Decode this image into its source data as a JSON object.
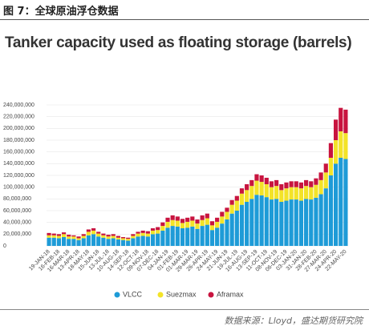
{
  "header": {
    "title": "图 7：全球原油浮仓数据"
  },
  "footer": {
    "source": "数据来源：Lloyd，盛达期货研究院"
  },
  "chart_data": {
    "type": "stacked_bar",
    "title": "Tanker capacity used as floating storage (barrels)",
    "categories": [
      "19-JAN-18",
      null,
      "16-FEB-18",
      null,
      "16-MAR-18",
      null,
      "13-APR-18",
      null,
      "18-MAY-18",
      null,
      "15-JUN-18",
      null,
      "13-JUL-18",
      null,
      "10-AUG-18",
      null,
      "14-SEP-18",
      null,
      "12-OCT-18",
      null,
      "09-NOV-18",
      null,
      "07-DEC-18",
      null,
      "04-JAN-19",
      null,
      "01-FEB-19",
      null,
      "01-MAR-19",
      null,
      "29-MAR-19",
      null,
      "26-APR-19",
      null,
      "24-MAY-19",
      null,
      "21-JUN-19",
      null,
      "19-JUL-19",
      null,
      "16-AUG-19",
      null,
      "13-SEP-19",
      null,
      "11-OCT-19",
      null,
      "08-NOV-19",
      null,
      "06-DEC-19",
      null,
      "03-JAN-20",
      null,
      "31-JAN-20",
      null,
      "28-FEB-20",
      null,
      "27-MAR-20",
      null,
      "24-APR-20",
      null,
      "22-MAY-20"
    ],
    "series": [
      {
        "name": "VLCC",
        "color": "#1e9bd7",
        "values": [
          14000000,
          14000000,
          13000000,
          15000000,
          12000000,
          12000000,
          10000000,
          13000000,
          18000000,
          20000000,
          16000000,
          14000000,
          12000000,
          13000000,
          11000000,
          10000000,
          9000000,
          13000000,
          16000000,
          17000000,
          16000000,
          20000000,
          21000000,
          26000000,
          31000000,
          34000000,
          33000000,
          30000000,
          31000000,
          33000000,
          29000000,
          34000000,
          36000000,
          27000000,
          31000000,
          38000000,
          45000000,
          55000000,
          60000000,
          70000000,
          75000000,
          80000000,
          87000000,
          86000000,
          83000000,
          79000000,
          80000000,
          75000000,
          77000000,
          79000000,
          79000000,
          77000000,
          80000000,
          79000000,
          82000000,
          88000000,
          98000000,
          120000000,
          140000000,
          150000000,
          148000000
        ]
      },
      {
        "name": "Suezmax",
        "color": "#f3e328",
        "values": [
          4000000,
          4000000,
          4000000,
          5000000,
          4000000,
          4000000,
          3000000,
          4000000,
          6000000,
          6000000,
          5000000,
          4000000,
          4000000,
          4000000,
          3000000,
          3000000,
          3000000,
          4000000,
          5000000,
          5000000,
          5000000,
          6000000,
          6000000,
          8000000,
          10000000,
          10000000,
          10000000,
          9000000,
          10000000,
          10000000,
          9000000,
          10000000,
          11000000,
          8000000,
          10000000,
          12000000,
          13000000,
          15000000,
          17000000,
          19000000,
          20000000,
          22000000,
          24000000,
          23000000,
          22000000,
          21000000,
          22000000,
          20000000,
          21000000,
          21000000,
          21000000,
          21000000,
          22000000,
          21000000,
          22000000,
          24000000,
          27000000,
          30000000,
          40000000,
          45000000,
          44000000
        ]
      },
      {
        "name": "Aframax",
        "color": "#c8143f",
        "values": [
          4000000,
          3000000,
          3000000,
          3000000,
          3000000,
          2000000,
          3000000,
          3000000,
          4000000,
          4000000,
          3000000,
          3000000,
          3000000,
          3000000,
          3000000,
          2000000,
          2000000,
          3000000,
          3000000,
          4000000,
          4000000,
          4000000,
          5000000,
          6000000,
          7000000,
          8000000,
          7000000,
          7000000,
          7000000,
          7000000,
          7000000,
          8000000,
          8000000,
          7000000,
          7000000,
          8000000,
          7000000,
          8000000,
          8000000,
          9000000,
          10000000,
          10000000,
          11000000,
          11000000,
          11000000,
          10000000,
          10000000,
          10000000,
          10000000,
          10000000,
          10000000,
          10000000,
          10000000,
          10000000,
          11000000,
          13000000,
          15000000,
          25000000,
          35000000,
          40000000,
          40000000
        ]
      }
    ],
    "ylim": [
      0,
      240000000
    ],
    "yticks": [
      0,
      {
        "value": 20000000,
        "label": "20,000,000"
      },
      {
        "value": 40000000,
        "label": "40,000,000"
      },
      {
        "value": 60000000,
        "label": "60,000,000"
      },
      {
        "value": 80000000,
        "label": "80,000,000"
      },
      {
        "value": 100000000,
        "label": "100,000,000"
      },
      {
        "value": 120000000,
        "label": "120,000,000"
      },
      {
        "value": 140000000,
        "label": "140,000,000"
      },
      {
        "value": 160000000,
        "label": "160,000,000"
      },
      {
        "value": 180000000,
        "label": "180,000,000"
      },
      {
        "value": 200000000,
        "label": "200,000,000"
      },
      {
        "value": 220000000,
        "label": "220,000,000"
      },
      {
        "value": 240000000,
        "label": "240,000,000"
      }
    ],
    "grid": true,
    "legend": "bottom"
  }
}
